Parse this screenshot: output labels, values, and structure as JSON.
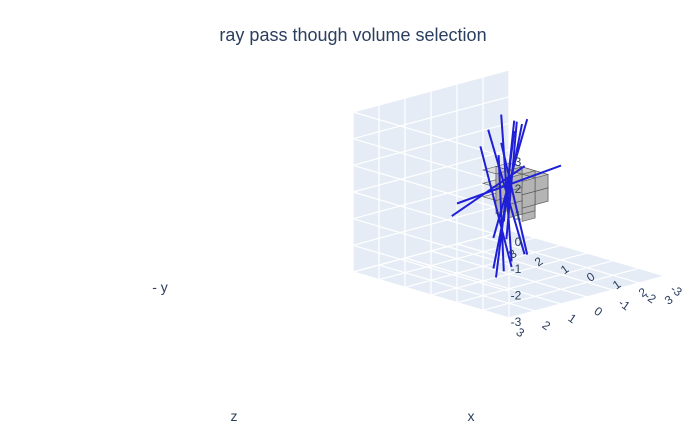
{
  "chart_data": {
    "type": "scatter3d",
    "title": "ray pass though volume selection",
    "xlabel": "x",
    "ylabel": "- y",
    "zlabel": "z",
    "xlim": [
      -3,
      3
    ],
    "ylim": [
      -3,
      3
    ],
    "zlim": [
      -3,
      3
    ],
    "x_ticks": [
      "3",
      "2",
      "1",
      "0",
      "1",
      "2",
      "3"
    ],
    "x_ticks_note": "visible tick glyphs left to right as partly clipped: 3, 2, 1, 0, 1, 2, 3",
    "y_ticks": [
      "3",
      "2",
      "1",
      "0",
      "-1",
      "-2",
      "-3"
    ],
    "z_ticks": [
      "-3",
      "-2",
      "-1",
      "0",
      "1",
      "2",
      "3"
    ],
    "grid": true,
    "background_color": "#e5ecf6",
    "voxel_color": "#c8c8c8",
    "ray_color": "#1f1fd6",
    "voxels": [
      {
        "x": -0.5,
        "y": 0.0,
        "z": -0.5
      },
      {
        "x": 0.0,
        "y": 0.0,
        "z": -0.5
      },
      {
        "x": 0.5,
        "y": 0.0,
        "z": -0.5
      },
      {
        "x": -0.5,
        "y": 0.0,
        "z": 0.0
      },
      {
        "x": 0.0,
        "y": 0.0,
        "z": 0.0
      },
      {
        "x": 0.5,
        "y": 0.0,
        "z": 0.0
      },
      {
        "x": -0.5,
        "y": 0.5,
        "z": -0.5
      },
      {
        "x": 0.0,
        "y": 0.5,
        "z": -0.5
      },
      {
        "x": 0.5,
        "y": 0.5,
        "z": -0.5
      },
      {
        "x": -0.5,
        "y": 0.5,
        "z": 0.0
      },
      {
        "x": 0.0,
        "y": 0.5,
        "z": 0.0
      },
      {
        "x": 0.5,
        "y": 0.5,
        "z": 0.0
      },
      {
        "x": -0.5,
        "y": -0.5,
        "z": 0.0
      },
      {
        "x": 0.0,
        "y": -0.5,
        "z": 0.0
      },
      {
        "x": 0.5,
        "y": -0.5,
        "z": 0.0
      },
      {
        "x": 0.0,
        "y": -0.5,
        "z": -0.5
      }
    ],
    "rays": [
      {
        "x": [
          -0.1,
          0.1
        ],
        "y": [
          -2.5,
          3.0
        ],
        "z": [
          0.0,
          0.2
        ]
      },
      {
        "x": [
          0.3,
          -0.2
        ],
        "y": [
          -2.8,
          2.6
        ],
        "z": [
          0.3,
          -0.3
        ]
      },
      {
        "x": [
          -0.4,
          0.4
        ],
        "y": [
          -2.2,
          2.4
        ],
        "z": [
          -0.2,
          0.4
        ]
      },
      {
        "x": [
          0.0,
          0.2
        ],
        "y": [
          -3.0,
          2.2
        ],
        "z": [
          0.5,
          -0.4
        ]
      },
      {
        "x": [
          -1.2,
          1.4
        ],
        "y": [
          1.2,
          -0.6
        ],
        "z": [
          -0.8,
          0.6
        ]
      },
      {
        "x": [
          0.6,
          -0.3
        ],
        "y": [
          -2.0,
          2.8
        ],
        "z": [
          -0.5,
          0.0
        ]
      },
      {
        "x": [
          -0.3,
          0.5
        ],
        "y": [
          -2.6,
          1.8
        ],
        "z": [
          0.2,
          0.6
        ]
      },
      {
        "x": [
          0.2,
          -0.5
        ],
        "y": [
          -1.6,
          2.9
        ],
        "z": [
          0.4,
          -0.2
        ]
      },
      {
        "x": [
          1.0,
          -0.2
        ],
        "y": [
          -0.8,
          1.0
        ],
        "z": [
          1.2,
          -0.4
        ]
      },
      {
        "x": [
          -0.1,
          0.0
        ],
        "y": [
          -2.4,
          2.0
        ],
        "z": [
          -0.6,
          0.3
        ]
      },
      {
        "x": [
          0.4,
          0.0
        ],
        "y": [
          -1.2,
          2.7
        ],
        "z": [
          -0.2,
          -0.2
        ]
      },
      {
        "x": [
          0.1,
          0.3
        ],
        "y": [
          -2.9,
          1.4
        ],
        "z": [
          0.1,
          0.1
        ]
      }
    ]
  }
}
